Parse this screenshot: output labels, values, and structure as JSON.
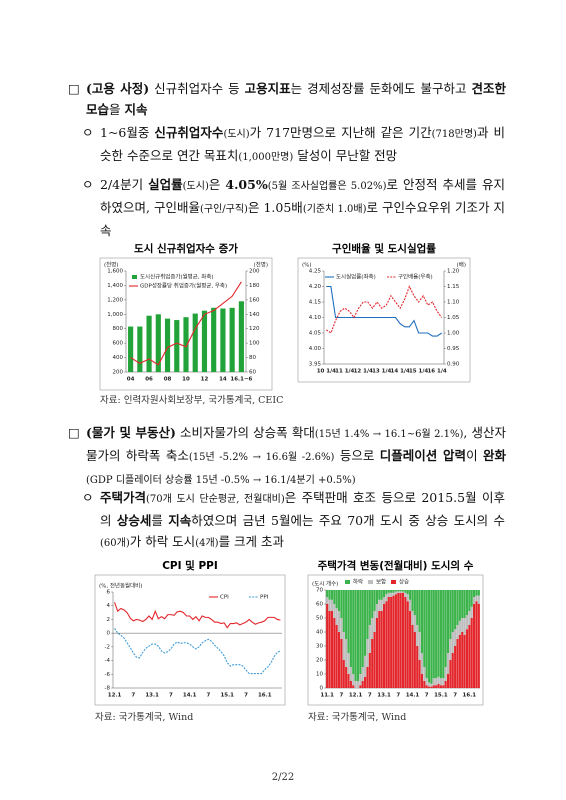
{
  "document": {
    "blocks": [
      {
        "marker": "□",
        "runs": [
          {
            "text": "(고용 사정)",
            "style": "bold"
          },
          " 신규취업자수 등 ",
          {
            "text": "고용지표",
            "style": "bold"
          },
          "는 경제성장률 둔화에도 불구하고 ",
          {
            "text": "견조한 모습",
            "style": "bold"
          },
          "을 ",
          {
            "text": "지속",
            "style": "bold"
          }
        ]
      },
      {
        "marker": "ㅇ",
        "runs": [
          "1~6월중 ",
          {
            "text": "신규취업자수",
            "style": "bold"
          },
          {
            "text": "(도시)",
            "style": "small"
          },
          "가 717만명으로 지난해 같은 기간",
          {
            "text": "(718만명)",
            "style": "small"
          },
          "과 비슷한 수준으로 연간 목표치",
          {
            "text": "(1,000만명)",
            "style": "small"
          },
          " 달성이 무난할 전망"
        ]
      },
      {
        "marker": "ㅇ",
        "runs": [
          "2/4분기 ",
          {
            "text": "실업률",
            "style": "bold"
          },
          {
            "text": "(도시)",
            "style": "small"
          },
          "은 ",
          {
            "text": "4.05%",
            "style": "bold"
          },
          {
            "text": "(5월 조사실업률은 5.02%)",
            "style": "small"
          },
          "로 안정적 추세를 유지하였으며, 구인배율",
          {
            "text": "(구인/구직)",
            "style": "small"
          },
          "은 1.05배",
          {
            "text": "(기준치 1.0배)",
            "style": "small"
          },
          "로 구인수요우위 기조가 지속"
        ]
      },
      {
        "marker": "□",
        "runs": [
          {
            "text": "(물가 및 부동산)",
            "style": "bold"
          },
          " 소비자물가의 상승폭 확대",
          {
            "text": "(15년 1.4% → 16.1~6월 2.1%)",
            "style": "small"
          },
          ", 생산자물가의 하락폭 축소",
          {
            "text": "(15년 -5.2% → 16.6월 -2.6%)",
            "style": "small"
          },
          " 등으로 ",
          {
            "text": "디플레이션 압력",
            "style": "bold"
          },
          "이 ",
          {
            "text": "완화",
            "style": "bold"
          },
          {
            "text": "(GDP 디플레이터 상승률 15년 -0.5% → 16.1/4분기 +0.5%)",
            "style": "small"
          }
        ]
      },
      {
        "marker": "ㅇ",
        "runs": [
          {
            "text": "주택가격",
            "style": "bold"
          },
          {
            "text": "(70개 도시 단순평균, 전월대비)",
            "style": "small"
          },
          "은 주택판매 호조 등으로 2015.5월 이후의 ",
          {
            "text": "상승세",
            "style": "bold"
          },
          "를 ",
          {
            "text": "지속",
            "style": "bold"
          },
          "하였으며 금년 5월에는 주요 70개 도시 중 상승 도시의 수",
          {
            "text": "(60개)",
            "style": "small"
          },
          "가 하락 도시",
          {
            "text": "(4개)",
            "style": "small"
          },
          "를 크게 초과"
        ]
      }
    ],
    "sources": [
      "자료: 인력자원사회보장부, 국가통계국, CEIC",
      "자료: 국가통계국, Wind",
      "자료: 국가통계국, Wind"
    ],
    "page_number": "2/22"
  },
  "chart_data": [
    {
      "type": "bar",
      "title": "도시 신규취업자수 증가",
      "y_label": "(천명)",
      "y2_label": "(천명)",
      "categories": [
        "04",
        null,
        "06",
        null,
        "08",
        null,
        "10",
        null,
        "12",
        null,
        "14",
        null,
        "16.1~6"
      ],
      "series": [
        {
          "name": "도시신규취업증가(월평균, 좌축)",
          "type": "bar",
          "color": "#22a33a",
          "values": [
            830,
            830,
            980,
            1000,
            940,
            920,
            960,
            1010,
            1050,
            1090,
            1080,
            1090,
            1180
          ]
        },
        {
          "name": "GDP성장률당 취업증가(월평균, 우축)",
          "type": "line",
          "axis": "y2",
          "color": "#e3262b",
          "values": [
            80,
            72,
            78,
            70,
            94,
            100,
            95,
            120,
            140,
            145,
            155,
            165,
            185
          ]
        }
      ],
      "ylim": [
        200,
        1600
      ],
      "yticks": [
        200,
        400,
        600,
        800,
        {
          "value": 1000,
          "label": "1,000"
        },
        {
          "value": 1200,
          "label": "1,200"
        },
        {
          "value": 1400,
          "label": "1,400"
        },
        {
          "value": 1600,
          "label": "1,600"
        }
      ],
      "y2lim": [
        60,
        200
      ],
      "y2ticks": [
        60,
        80,
        100,
        120,
        140,
        160,
        180,
        200
      ]
    },
    {
      "type": "line",
      "title": "구인배율 및 도시실업률",
      "y_label": "(%)",
      "y2_label": "(배)",
      "categories": [
        "10 1/4",
        null,
        null,
        null,
        "11 1/4",
        null,
        null,
        null,
        "12 1/4",
        null,
        null,
        null,
        "13 1/4",
        null,
        null,
        null,
        "14 1/4",
        null,
        null,
        null,
        "15 1/4",
        null,
        null,
        null,
        "16 1/4",
        null
      ],
      "series": [
        {
          "name": "도시실업률(좌축)",
          "color": "#1f6fbf",
          "values": [
            4.2,
            4.2,
            4.1,
            4.1,
            4.1,
            4.1,
            4.1,
            4.1,
            4.1,
            4.1,
            4.1,
            4.1,
            4.1,
            4.1,
            4.1,
            4.1,
            4.08,
            4.07,
            4.07,
            4.09,
            4.05,
            4.05,
            4.05,
            4.04,
            4.04,
            4.05
          ]
        },
        {
          "name": "구인배율(우축)",
          "color": "#e3262b",
          "dash": true,
          "axis": "y2",
          "values": [
            1.01,
            1.0,
            1.04,
            1.07,
            1.08,
            1.07,
            1.05,
            1.08,
            1.1,
            1.1,
            1.08,
            1.1,
            1.08,
            1.09,
            1.12,
            1.1,
            1.08,
            1.11,
            1.15,
            1.12,
            1.1,
            1.12,
            1.09,
            1.1,
            1.07,
            1.05
          ]
        }
      ],
      "ylim": [
        3.95,
        4.25
      ],
      "yticks": [
        3.95,
        {
          "value": 4.0,
          "label": "4.00"
        },
        4.05,
        {
          "value": 4.1,
          "label": "4.10"
        },
        4.15,
        {
          "value": 4.2,
          "label": "4.20"
        },
        4.25
      ],
      "y2lim": [
        0.9,
        1.2
      ],
      "y2ticks": [
        {
          "value": 0.9,
          "label": "0.90"
        },
        0.95,
        {
          "value": 1.0,
          "label": "1.00"
        },
        1.05,
        {
          "value": 1.1,
          "label": "1.10"
        },
        1.15,
        {
          "value": 1.2,
          "label": "1.20"
        }
      ]
    },
    {
      "type": "line",
      "title": "CPI 및 PPI",
      "y_label": "(%, 전년동월대비)",
      "categories": [
        "12.1",
        null,
        null,
        null,
        null,
        null,
        "7",
        null,
        null,
        null,
        null,
        null,
        "13.1",
        null,
        null,
        null,
        null,
        null,
        "7",
        null,
        null,
        null,
        null,
        null,
        "14.1",
        null,
        null,
        null,
        null,
        null,
        "7",
        null,
        null,
        null,
        null,
        null,
        "15.1",
        null,
        null,
        null,
        null,
        null,
        "7",
        null,
        null,
        null,
        null,
        null,
        "16.1",
        null,
        null,
        null,
        null,
        null
      ],
      "series": [
        {
          "name": "CPI",
          "color": "#e3262b",
          "values": [
            4.5,
            3.2,
            3.6,
            3.4,
            3.0,
            2.2,
            1.8,
            2.0,
            1.9,
            1.7,
            2.0,
            2.5,
            2.0,
            3.2,
            2.1,
            2.4,
            2.1,
            2.7,
            2.7,
            2.6,
            3.1,
            3.2,
            3.0,
            2.5,
            2.5,
            2.0,
            2.4,
            1.8,
            2.5,
            2.3,
            2.3,
            2.0,
            1.6,
            1.6,
            1.4,
            1.5,
            0.8,
            1.4,
            1.4,
            1.5,
            1.2,
            1.4,
            1.6,
            2.0,
            1.6,
            1.3,
            1.5,
            1.6,
            1.8,
            2.3,
            2.3,
            2.3,
            2.0,
            1.9
          ]
        },
        {
          "name": "PPI",
          "color": "#3d9bd6",
          "dash": true,
          "values": [
            0.7,
            0.0,
            -0.3,
            -0.7,
            -1.4,
            -2.1,
            -2.9,
            -3.5,
            -3.6,
            -2.8,
            -2.2,
            -1.9,
            -1.6,
            -1.6,
            -1.9,
            -2.6,
            -2.9,
            -2.7,
            -2.3,
            -1.6,
            -1.3,
            -1.5,
            -1.4,
            -1.4,
            -1.6,
            -2.0,
            -2.3,
            -2.0,
            -1.4,
            -1.1,
            -0.9,
            -1.2,
            -1.8,
            -2.2,
            -2.7,
            -3.3,
            -4.3,
            -4.8,
            -4.6,
            -4.6,
            -4.6,
            -4.8,
            -5.4,
            -5.9,
            -5.9,
            -5.9,
            -5.9,
            -5.9,
            -5.3,
            -4.9,
            -4.3,
            -3.4,
            -2.8,
            -2.6
          ]
        }
      ],
      "ylim": [
        -8,
        6
      ],
      "yticks": [
        -8,
        -6,
        -4,
        -2,
        0,
        2,
        4,
        6
      ]
    },
    {
      "type": "bar",
      "stacked": true,
      "title": "주택가격 변동(전월대비) 도시의 수",
      "y_label": "(도시 개수)",
      "categories": [
        "11.1",
        null,
        null,
        null,
        null,
        null,
        "7",
        null,
        null,
        null,
        null,
        null,
        "12.1",
        null,
        null,
        null,
        null,
        null,
        "7",
        null,
        null,
        null,
        null,
        null,
        "13.1",
        null,
        null,
        null,
        null,
        null,
        "7",
        null,
        null,
        null,
        null,
        null,
        "14.1",
        null,
        null,
        null,
        null,
        null,
        "7",
        null,
        null,
        null,
        null,
        null,
        "15.1",
        null,
        null,
        null,
        null,
        null,
        "7",
        null,
        null,
        null,
        null,
        null,
        "16.1",
        null,
        null,
        null,
        null
      ],
      "series": [
        {
          "name": "하락",
          "color": "#3bb34a",
          "values": [
            5,
            7,
            7,
            10,
            13,
            15,
            20,
            30,
            35,
            45,
            55,
            60,
            65,
            65,
            60,
            55,
            47,
            35,
            25,
            20,
            15,
            10,
            7,
            7,
            5,
            3,
            2,
            2,
            2,
            1,
            1,
            1,
            1,
            2,
            3,
            7,
            15,
            18,
            25,
            30,
            45,
            55,
            63,
            66,
            67,
            63,
            63,
            62,
            63,
            63,
            55,
            45,
            35,
            30,
            28,
            25,
            22,
            20,
            20,
            18,
            15,
            12,
            5,
            4,
            4
          ]
        },
        {
          "name": "보합",
          "color": "#bdbdbd",
          "values": [
            5,
            8,
            8,
            10,
            12,
            15,
            15,
            20,
            20,
            15,
            10,
            8,
            5,
            5,
            8,
            10,
            15,
            20,
            20,
            15,
            15,
            10,
            8,
            8,
            5,
            5,
            3,
            3,
            2,
            2,
            1,
            1,
            1,
            3,
            5,
            8,
            10,
            12,
            15,
            20,
            15,
            10,
            5,
            3,
            2,
            5,
            5,
            5,
            5,
            5,
            10,
            15,
            15,
            15,
            12,
            10,
            10,
            10,
            12,
            10,
            10,
            8,
            5,
            4,
            6
          ]
        },
        {
          "name": "상승",
          "color": "#e3262b",
          "values": [
            60,
            55,
            55,
            50,
            45,
            40,
            35,
            20,
            15,
            10,
            5,
            2,
            0,
            0,
            2,
            5,
            8,
            15,
            25,
            35,
            40,
            50,
            55,
            55,
            60,
            62,
            65,
            65,
            66,
            67,
            68,
            68,
            68,
            65,
            62,
            55,
            45,
            40,
            30,
            20,
            10,
            5,
            2,
            1,
            1,
            2,
            2,
            3,
            2,
            2,
            5,
            10,
            20,
            25,
            30,
            35,
            38,
            40,
            38,
            42,
            45,
            50,
            60,
            62,
            60
          ]
        }
      ],
      "ylim": [
        0,
        70
      ],
      "yticks": [
        0,
        10,
        20,
        30,
        40,
        50,
        60,
        70
      ]
    }
  ]
}
